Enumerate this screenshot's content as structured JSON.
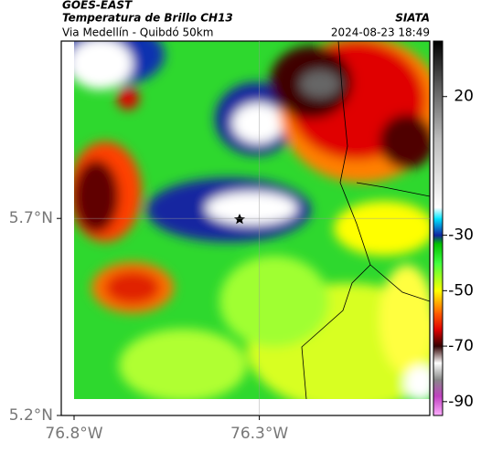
{
  "header": {
    "title": "GOES-EAST",
    "subtitle": "Temperatura de Brillo CH13",
    "route": "Via Medellín - Quibdó 50km",
    "source": "SIATA",
    "datetime": "2024-08-23 18:49"
  },
  "map": {
    "xlim": [
      -76.8,
      -75.84
    ],
    "ylim": [
      5.2,
      6.15
    ],
    "xticks": [
      {
        "value": -76.8,
        "label": "76.8°W"
      },
      {
        "value": -76.3,
        "label": "76.3°W"
      }
    ],
    "yticks": [
      {
        "value": 5.2,
        "label": "5.2°N"
      },
      {
        "value": 5.7,
        "label": "5.7°N"
      }
    ],
    "grid": true
  },
  "colorbar": {
    "range": [
      -95,
      40
    ],
    "ticks": [
      20,
      -30,
      -50,
      -70,
      -90
    ],
    "stops": [
      {
        "value": 40,
        "color": "#000000"
      },
      {
        "value": 25,
        "color": "#555555"
      },
      {
        "value": 5,
        "color": "#bbbbbb"
      },
      {
        "value": -20,
        "color": "#ffffff"
      },
      {
        "value": -24,
        "color": "#00e5ff"
      },
      {
        "value": -30,
        "color": "#1020a0"
      },
      {
        "value": -33,
        "color": "#00c000"
      },
      {
        "value": -40,
        "color": "#40ff40"
      },
      {
        "value": -50,
        "color": "#ffff00"
      },
      {
        "value": -58,
        "color": "#ff6000"
      },
      {
        "value": -64,
        "color": "#e00000"
      },
      {
        "value": -70,
        "color": "#300000"
      },
      {
        "value": -76,
        "color": "#ffffff"
      },
      {
        "value": -82,
        "color": "#888888"
      },
      {
        "value": -88,
        "color": "#c040c0"
      },
      {
        "value": -95,
        "color": "#ffb0ff"
      }
    ]
  }
}
